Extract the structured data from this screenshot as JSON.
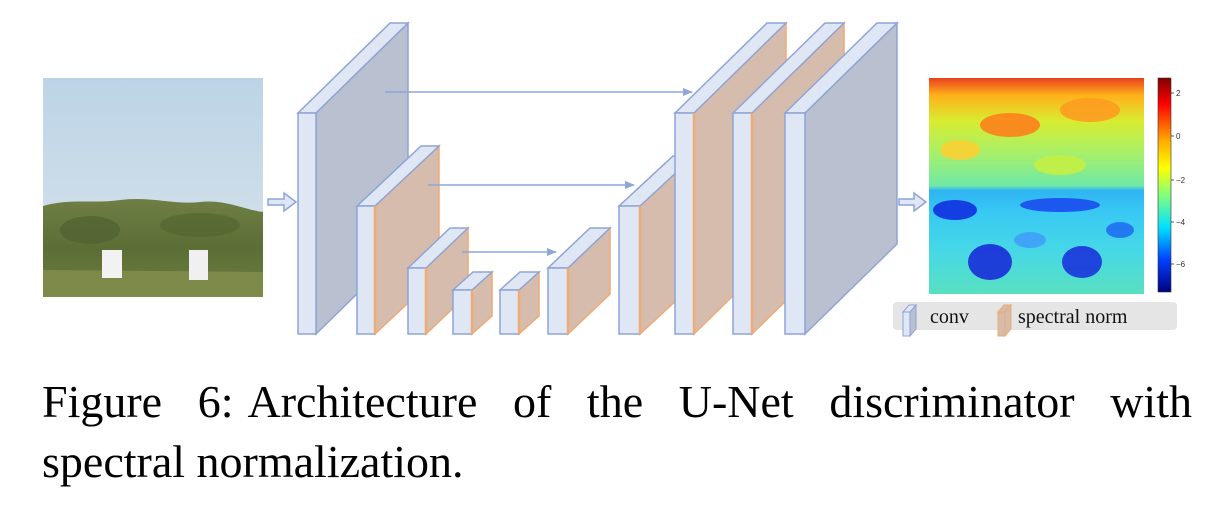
{
  "figure": {
    "label": "Figure 6:",
    "caption_text": "Architecture of the U-Net discriminator with spectral normalization."
  },
  "legend": {
    "conv_label": "conv",
    "spectral_norm_label": "spectral norm"
  },
  "colorbar": {
    "ticks": [
      "2",
      "0",
      "−2",
      "−4",
      "−6"
    ],
    "colormap": "jet"
  },
  "colors": {
    "conv_face": "#dfe6f4",
    "conv_body": "#b9c0cf",
    "conv_edge": "#8fa3d6",
    "spectral_face": "#d6bcac",
    "spectral_edge": "#f0aa74",
    "arrow": "#8fa6d8",
    "legend_bg": "#e5e5e5"
  }
}
